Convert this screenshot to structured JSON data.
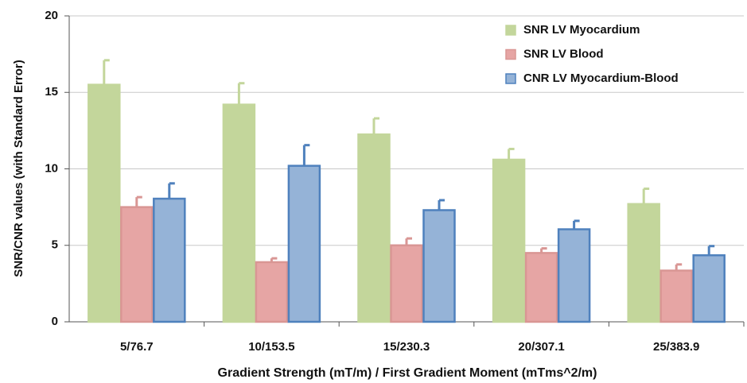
{
  "chart_data": {
    "type": "bar",
    "y_label": "SNR/CNR values (with Standard Error)",
    "x_label": "Gradient Strength (mT/m) / First Gradient Moment (mTms^2/m)",
    "categories": [
      "5/76.7",
      "10/153.5",
      "15/230.3",
      "20/307.1",
      "25/383.9"
    ],
    "series": [
      {
        "name": "SNR LV Myocardium",
        "color": "#c3d69b",
        "edgecolor": "#c3d69b",
        "values": [
          15.5,
          14.2,
          12.25,
          10.6,
          7.7
        ],
        "errors": [
          1.6,
          1.4,
          1.05,
          0.7,
          1.0
        ]
      },
      {
        "name": "SNR LV Blood",
        "color": "#e6a5a4",
        "edgecolor": "#d99694",
        "values": [
          7.5,
          3.9,
          5.0,
          4.5,
          3.35
        ],
        "errors": [
          0.65,
          0.25,
          0.45,
          0.3,
          0.4
        ]
      },
      {
        "name": "CNR LV Myocardium-Blood",
        "color": "#95b3d7",
        "edgecolor": "#4f81bd",
        "values": [
          8.05,
          10.2,
          7.3,
          6.05,
          4.35
        ],
        "errors": [
          1.0,
          1.35,
          0.65,
          0.55,
          0.6
        ]
      }
    ],
    "ylim": [
      0,
      20
    ],
    "yticks": [
      0,
      5,
      10,
      15,
      20
    ],
    "grid": true,
    "legend": "upper right"
  }
}
